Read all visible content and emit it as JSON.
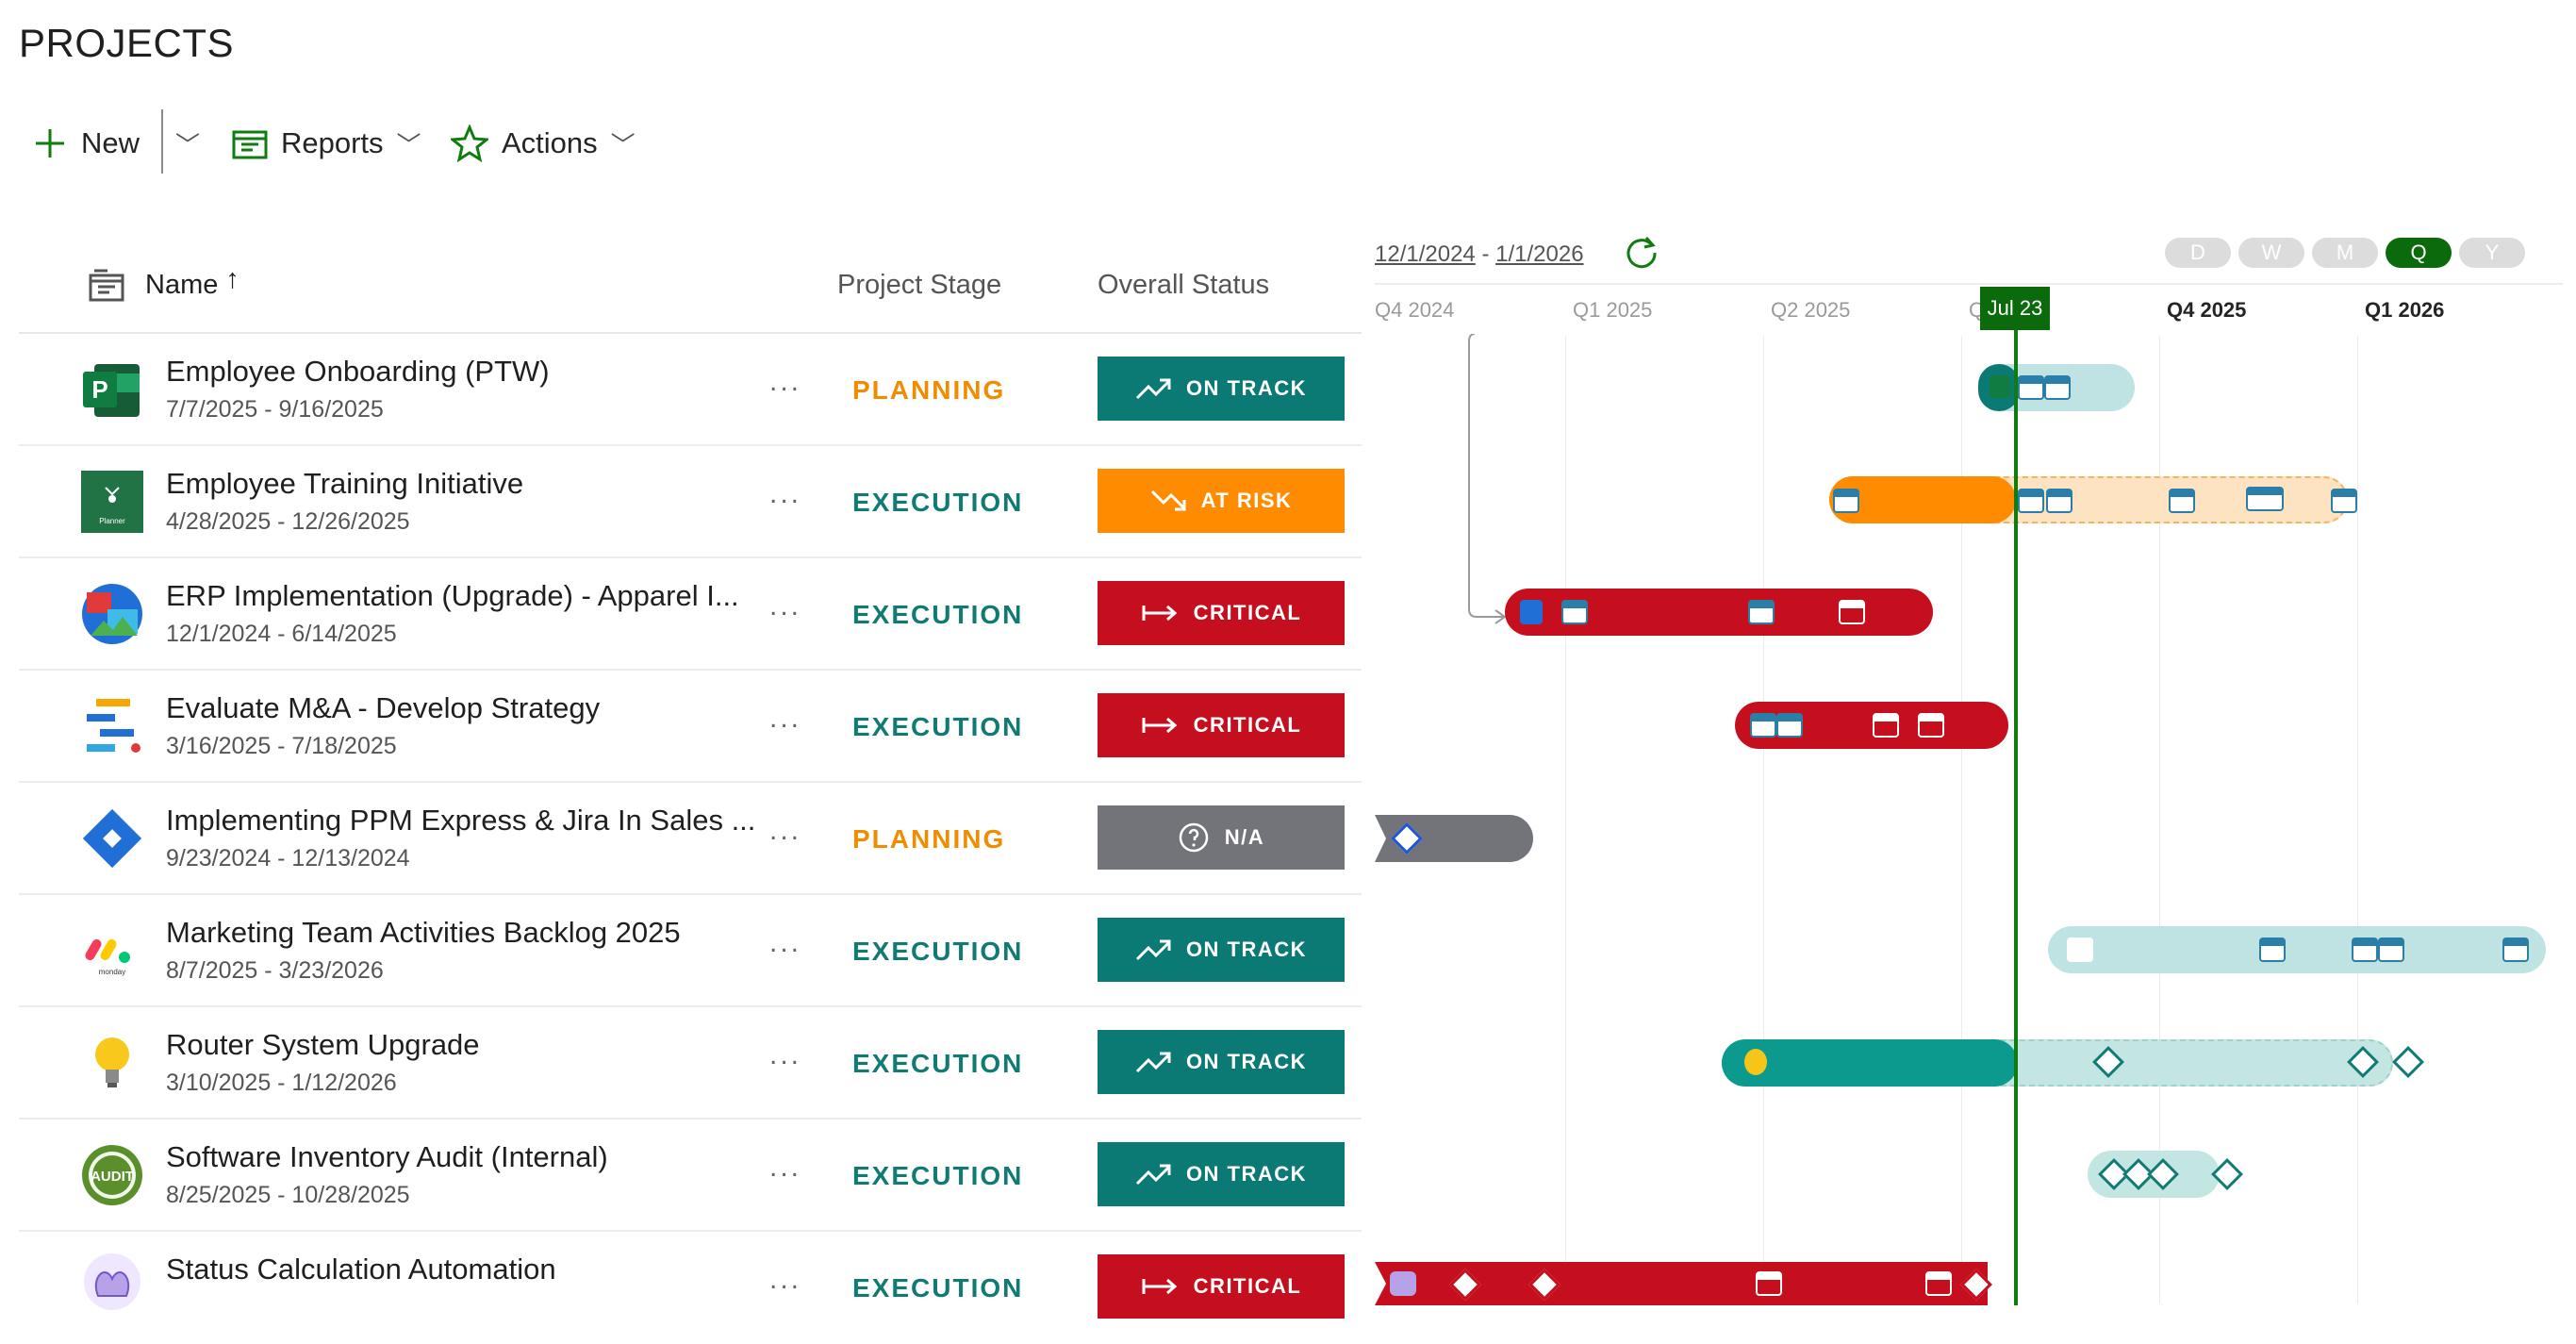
{
  "page": {
    "title": "PROJECTS"
  },
  "toolbar": {
    "new_label": "New",
    "reports_label": "Reports",
    "actions_label": "Actions"
  },
  "columns": {
    "name": "Name",
    "sort_indicator": "↑",
    "stage": "Project Stage",
    "status": "Overall Status"
  },
  "timeline": {
    "range_start": "12/1/2024",
    "range_sep": "-",
    "range_end": "1/1/2026",
    "quarters": [
      "Q4 2024",
      "Q1 2025",
      "Q2 2025",
      "Q",
      "Q4 2025",
      "Q1 2026"
    ],
    "today_label": "Jul 23",
    "zoom": [
      "D",
      "W",
      "M",
      "Q",
      "Y"
    ],
    "zoom_selected": "Q",
    "today_color": "#107c10"
  },
  "row_menu_label": "...",
  "projects": [
    {
      "name": "Employee Onboarding (PTW)",
      "dates": "7/7/2025 - 9/16/2025",
      "stage": "PLANNING",
      "status": "ON TRACK",
      "icon": "project-icon"
    },
    {
      "name": "Employee Training Initiative",
      "dates": "4/28/2025 - 12/26/2025",
      "stage": "EXECUTION",
      "status": "AT RISK",
      "icon": "planner-icon",
      "icon_text": "Planner"
    },
    {
      "name": "ERP Implementation (Upgrade) - Apparel I...",
      "dates": "12/1/2024 - 6/14/2025",
      "stage": "EXECUTION",
      "status": "CRITICAL",
      "icon": "erp-icon"
    },
    {
      "name": "Evaluate M&A - Develop Strategy",
      "dates": "3/16/2025 - 7/18/2025",
      "stage": "EXECUTION",
      "status": "CRITICAL",
      "icon": "strategy-icon"
    },
    {
      "name": "Implementing PPM Express & Jira In Sales ...",
      "dates": "9/23/2024 - 12/13/2024",
      "stage": "PLANNING",
      "status": "N/A",
      "icon": "jira-icon"
    },
    {
      "name": "Marketing Team Activities Backlog 2025",
      "dates": "8/7/2025 - 3/23/2026",
      "stage": "EXECUTION",
      "status": "ON TRACK",
      "icon": "monday-icon",
      "icon_text": "monday"
    },
    {
      "name": "Router System Upgrade",
      "dates": "3/10/2025 - 1/12/2026",
      "stage": "EXECUTION",
      "status": "ON TRACK",
      "icon": "lightbulb-icon"
    },
    {
      "name": "Software Inventory Audit (Internal)",
      "dates": "8/25/2025 - 10/28/2025",
      "stage": "EXECUTION",
      "status": "ON TRACK",
      "icon": "audit-icon",
      "icon_text": "AUDIT"
    },
    {
      "name": "Status Calculation Automation",
      "dates": "",
      "stage": "EXECUTION",
      "status": "CRITICAL",
      "icon": "automation-icon"
    }
  ],
  "status_colors": {
    "ON TRACK": "#0b7a75",
    "AT RISK": "#ff8c00",
    "CRITICAL": "#c50f1f",
    "N/A": "#737479"
  },
  "stage_colors": {
    "PLANNING": "#f08c00",
    "EXECUTION": "#0f7b73"
  }
}
